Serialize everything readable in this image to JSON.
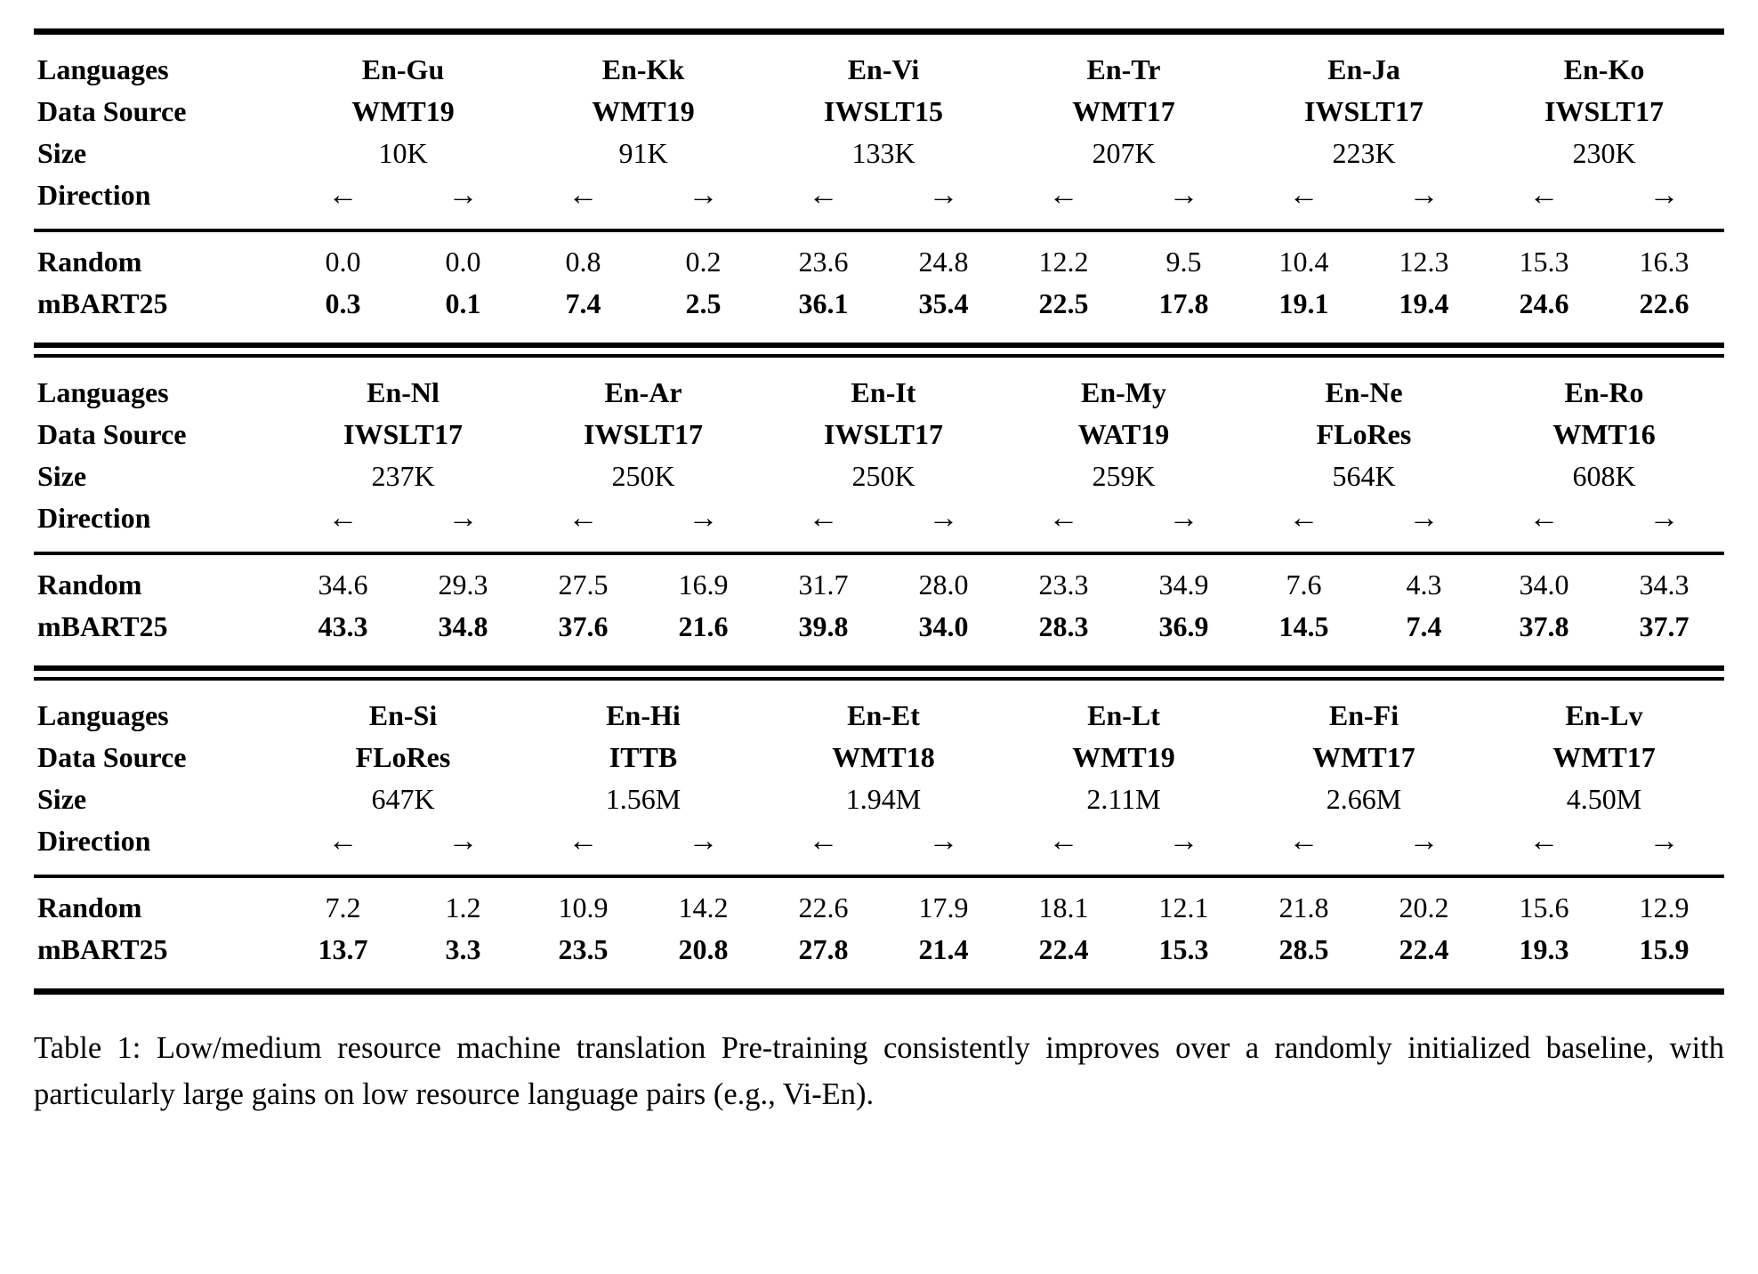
{
  "table": {
    "row_labels": {
      "languages": "Languages",
      "data_source": "Data Source",
      "size": "Size",
      "direction": "Direction",
      "random": "Random",
      "mbart": "mBART25"
    },
    "direction_left": "←",
    "direction_right": "→",
    "blocks": [
      {
        "groups": [
          {
            "language": "En-Gu",
            "source": "WMT19",
            "size": "10K",
            "random": [
              "0.0",
              "0.0"
            ],
            "mbart": [
              "0.3",
              "0.1"
            ]
          },
          {
            "language": "En-Kk",
            "source": "WMT19",
            "size": "91K",
            "random": [
              "0.8",
              "0.2"
            ],
            "mbart": [
              "7.4",
              "2.5"
            ]
          },
          {
            "language": "En-Vi",
            "source": "IWSLT15",
            "size": "133K",
            "random": [
              "23.6",
              "24.8"
            ],
            "mbart": [
              "36.1",
              "35.4"
            ]
          },
          {
            "language": "En-Tr",
            "source": "WMT17",
            "size": "207K",
            "random": [
              "12.2",
              "9.5"
            ],
            "mbart": [
              "22.5",
              "17.8"
            ]
          },
          {
            "language": "En-Ja",
            "source": "IWSLT17",
            "size": "223K",
            "random": [
              "10.4",
              "12.3"
            ],
            "mbart": [
              "19.1",
              "19.4"
            ]
          },
          {
            "language": "En-Ko",
            "source": "IWSLT17",
            "size": "230K",
            "random": [
              "15.3",
              "16.3"
            ],
            "mbart": [
              "24.6",
              "22.6"
            ]
          }
        ]
      },
      {
        "groups": [
          {
            "language": "En-Nl",
            "source": "IWSLT17",
            "size": "237K",
            "random": [
              "34.6",
              "29.3"
            ],
            "mbart": [
              "43.3",
              "34.8"
            ]
          },
          {
            "language": "En-Ar",
            "source": "IWSLT17",
            "size": "250K",
            "random": [
              "27.5",
              "16.9"
            ],
            "mbart": [
              "37.6",
              "21.6"
            ]
          },
          {
            "language": "En-It",
            "source": "IWSLT17",
            "size": "250K",
            "random": [
              "31.7",
              "28.0"
            ],
            "mbart": [
              "39.8",
              "34.0"
            ]
          },
          {
            "language": "En-My",
            "source": "WAT19",
            "size": "259K",
            "random": [
              "23.3",
              "34.9"
            ],
            "mbart": [
              "28.3",
              "36.9"
            ]
          },
          {
            "language": "En-Ne",
            "source": "FLoRes",
            "size": "564K",
            "random": [
              "7.6",
              "4.3"
            ],
            "mbart": [
              "14.5",
              "7.4"
            ]
          },
          {
            "language": "En-Ro",
            "source": "WMT16",
            "size": "608K",
            "random": [
              "34.0",
              "34.3"
            ],
            "mbart": [
              "37.8",
              "37.7"
            ]
          }
        ]
      },
      {
        "groups": [
          {
            "language": "En-Si",
            "source": "FLoRes",
            "size": "647K",
            "random": [
              "7.2",
              "1.2"
            ],
            "mbart": [
              "13.7",
              "3.3"
            ]
          },
          {
            "language": "En-Hi",
            "source": "ITTB",
            "size": "1.56M",
            "random": [
              "10.9",
              "14.2"
            ],
            "mbart": [
              "23.5",
              "20.8"
            ]
          },
          {
            "language": "En-Et",
            "source": "WMT18",
            "size": "1.94M",
            "random": [
              "22.6",
              "17.9"
            ],
            "mbart": [
              "27.8",
              "21.4"
            ]
          },
          {
            "language": "En-Lt",
            "source": "WMT19",
            "size": "2.11M",
            "random": [
              "18.1",
              "12.1"
            ],
            "mbart": [
              "22.4",
              "15.3"
            ]
          },
          {
            "language": "En-Fi",
            "source": "WMT17",
            "size": "2.66M",
            "random": [
              "21.8",
              "20.2"
            ],
            "mbart": [
              "28.5",
              "22.4"
            ]
          },
          {
            "language": "En-Lv",
            "source": "WMT17",
            "size": "4.50M",
            "random": [
              "15.6",
              "12.9"
            ],
            "mbart": [
              "19.3",
              "15.9"
            ]
          }
        ]
      }
    ]
  },
  "caption": {
    "text": "Table 1: Low/medium resource machine translation Pre-training consistently improves over a randomly initialized baseline, with particularly large gains on low resource language pairs (e.g., Vi-En)."
  }
}
